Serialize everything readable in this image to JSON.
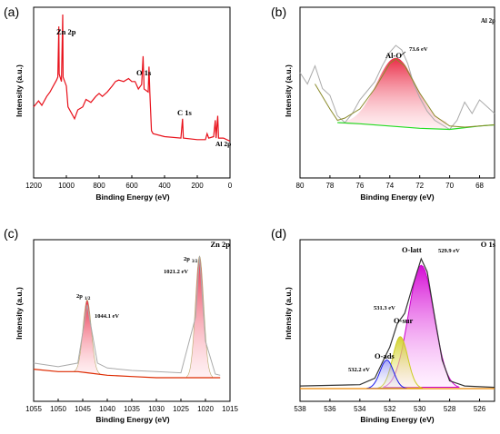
{
  "panels": [
    {
      "label": "(a)",
      "xlabel": "Binding Energy (eV)",
      "ylabel": "Intensity (a.u.)",
      "corner": ""
    },
    {
      "label": "(b)",
      "xlabel": "Binding Energy (eV)",
      "ylabel": "Intensity (a.u.)",
      "corner": "Al 2p"
    },
    {
      "label": "(c)",
      "xlabel": "Binding Energy (eV)",
      "ylabel": "Intensity (a.u.)",
      "corner": "Zn 2p"
    },
    {
      "label": "(d)",
      "xlabel": "Binding Energy (eV)",
      "ylabel": "Intensity (a.u.)",
      "corner": "O 1s"
    }
  ],
  "chart_data": [
    {
      "type": "line",
      "title": "",
      "xlabel": "Binding Energy (eV)",
      "ylabel": "Intensity (a.u.)",
      "xlim": [
        1200,
        0
      ],
      "xticks": [
        1200,
        1000,
        800,
        600,
        400,
        200,
        0
      ],
      "line_color": "#e8101a",
      "annotations": [
        "Zn 2p",
        "O 1s",
        "C 1s",
        "Al 2p"
      ],
      "series": [
        {
          "values": [
            [
              1200,
              0.38
            ],
            [
              1170,
              0.42
            ],
            [
              1150,
              0.39
            ],
            [
              1120,
              0.45
            ],
            [
              1100,
              0.48
            ],
            [
              1080,
              0.52
            ],
            [
              1060,
              0.56
            ],
            [
              1052,
              0.58
            ],
            [
              1046,
              0.92
            ],
            [
              1044,
              0.6
            ],
            [
              1030,
              0.55
            ],
            [
              1022,
              1.0
            ],
            [
              1020,
              0.58
            ],
            [
              1000,
              0.52
            ],
            [
              990,
              0.38
            ],
            [
              970,
              0.34
            ],
            [
              950,
              0.3
            ],
            [
              930,
              0.36
            ],
            [
              900,
              0.38
            ],
            [
              880,
              0.43
            ],
            [
              850,
              0.41
            ],
            [
              820,
              0.45
            ],
            [
              800,
              0.47
            ],
            [
              780,
              0.45
            ],
            [
              750,
              0.48
            ],
            [
              720,
              0.52
            ],
            [
              700,
              0.55
            ],
            [
              680,
              0.56
            ],
            [
              650,
              0.55
            ],
            [
              620,
              0.57
            ],
            [
              600,
              0.55
            ],
            [
              580,
              0.55
            ],
            [
              560,
              0.5
            ],
            [
              540,
              0.53
            ],
            [
              531,
              0.72
            ],
            [
              525,
              0.5
            ],
            [
              500,
              0.48
            ],
            [
              495,
              0.65
            ],
            [
              490,
              0.48
            ],
            [
              480,
              0.22
            ],
            [
              470,
              0.2
            ],
            [
              400,
              0.18
            ],
            [
              300,
              0.17
            ],
            [
              290,
              0.3
            ],
            [
              285,
              0.17
            ],
            [
              200,
              0.16
            ],
            [
              150,
              0.16
            ],
            [
              140,
              0.2
            ],
            [
              130,
              0.17
            ],
            [
              100,
              0.18
            ],
            [
              90,
              0.29
            ],
            [
              85,
              0.17
            ],
            [
              75,
              0.32
            ],
            [
              70,
              0.17
            ],
            [
              40,
              0.17
            ],
            [
              20,
              0.16
            ],
            [
              0,
              0.15
            ]
          ]
        }
      ]
    },
    {
      "type": "line",
      "title": "",
      "xlabel": "Binding Energy (eV)",
      "ylabel": "Intensity (a.u.)",
      "xlim": [
        80,
        67
      ],
      "xticks": [
        80,
        78,
        76,
        74,
        72,
        70,
        68
      ],
      "annotations": [
        "Al-O",
        "73.6 eV"
      ],
      "peak_center": 73.6,
      "series": [
        {
          "role": "raw",
          "color": "#aaaaaa",
          "values": [
            [
              80,
              0.72
            ],
            [
              79.5,
              0.62
            ],
            [
              79,
              0.78
            ],
            [
              78.5,
              0.58
            ],
            [
              78,
              0.52
            ],
            [
              77.5,
              0.34
            ],
            [
              77,
              0.28
            ],
            [
              76.5,
              0.36
            ],
            [
              76,
              0.48
            ],
            [
              75.5,
              0.56
            ],
            [
              75,
              0.64
            ],
            [
              74.5,
              0.78
            ],
            [
              74,
              0.9
            ],
            [
              73.6,
              0.96
            ],
            [
              73.2,
              0.92
            ],
            [
              72.8,
              0.8
            ],
            [
              72.4,
              0.62
            ],
            [
              72,
              0.5
            ],
            [
              71.5,
              0.38
            ],
            [
              71,
              0.3
            ],
            [
              70.5,
              0.26
            ],
            [
              70,
              0.22
            ],
            [
              69.5,
              0.3
            ],
            [
              69,
              0.46
            ],
            [
              68.5,
              0.36
            ],
            [
              68,
              0.48
            ],
            [
              67.5,
              0.42
            ],
            [
              67,
              0.36
            ]
          ]
        },
        {
          "role": "background",
          "color": "#22dd22",
          "values": [
            [
              77.5,
              0.28
            ],
            [
              76,
              0.27
            ],
            [
              74,
              0.25
            ],
            [
              72,
              0.23
            ],
            [
              70,
              0.22
            ],
            [
              68,
              0.25
            ],
            [
              67,
              0.26
            ]
          ]
        },
        {
          "role": "envelope",
          "color": "#8a8a2a",
          "values": [
            [
              79,
              0.62
            ],
            [
              78,
              0.4
            ],
            [
              77.5,
              0.3
            ],
            [
              77,
              0.32
            ],
            [
              76,
              0.4
            ],
            [
              75,
              0.58
            ],
            [
              74,
              0.8
            ],
            [
              73.6,
              0.84
            ],
            [
              73,
              0.78
            ],
            [
              72,
              0.54
            ],
            [
              71,
              0.34
            ],
            [
              70,
              0.25
            ],
            [
              69,
              0.24
            ],
            [
              68,
              0.25
            ],
            [
              67,
              0.26
            ]
          ]
        }
      ]
    },
    {
      "type": "line",
      "title": "",
      "xlabel": "Binding Energy (eV)",
      "ylabel": "Intensity (a.u.)",
      "xlim": [
        1055,
        1015
      ],
      "xticks": [
        1055,
        1050,
        1045,
        1040,
        1035,
        1030,
        1025,
        1020,
        1015
      ],
      "annotations": [
        "2p1/2",
        "1044.1 eV",
        "2p3/2",
        "1021.2 eV"
      ],
      "peaks": [
        {
          "center": 1044.1,
          "height": 0.6
        },
        {
          "center": 1021.2,
          "height": 1.0
        }
      ],
      "series": [
        {
          "role": "raw",
          "color": "#aaaaaa",
          "values": [
            [
              1055,
              0.12
            ],
            [
              1050,
              0.09
            ],
            [
              1046,
              0.12
            ],
            [
              1044.1,
              0.6
            ],
            [
              1042,
              0.12
            ],
            [
              1040,
              0.08
            ],
            [
              1035,
              0.06
            ],
            [
              1030,
              0.05
            ],
            [
              1025,
              0.04
            ],
            [
              1022,
              0.5
            ],
            [
              1021.2,
              1.0
            ],
            [
              1020,
              0.3
            ],
            [
              1018,
              0.03
            ],
            [
              1017,
              0.02
            ]
          ]
        },
        {
          "role": "background",
          "color": "#dd2a00",
          "values": [
            [
              1055,
              0.07
            ],
            [
              1050,
              0.05
            ],
            [
              1046,
              0.05
            ],
            [
              1044,
              0.04
            ],
            [
              1040,
              0.02
            ],
            [
              1035,
              0.01
            ],
            [
              1030,
              0.0
            ],
            [
              1025,
              0.0
            ],
            [
              1020,
              0.0
            ],
            [
              1017,
              0.0
            ]
          ]
        }
      ]
    },
    {
      "type": "line",
      "title": "",
      "xlabel": "Binding Energy (eV)",
      "ylabel": "Intensity (a.u.)",
      "xlim": [
        538,
        525
      ],
      "xticks": [
        538,
        536,
        534,
        532,
        530,
        528,
        526
      ],
      "annotations": [
        "O-latt",
        "529.9 eV",
        "531.3 eV",
        "O-sur",
        "O-ads",
        "532.2 eV"
      ],
      "peaks": [
        {
          "name": "O-latt",
          "center": 529.9,
          "height": 0.95,
          "color": "#cc00cc"
        },
        {
          "name": "O-sur",
          "center": 531.3,
          "height": 0.4,
          "color": "#cccc22"
        },
        {
          "name": "O-ads",
          "center": 532.2,
          "height": 0.22,
          "color": "#1a1aee"
        }
      ],
      "series": [
        {
          "role": "envelope",
          "color": "#333333",
          "values": [
            [
              538,
              0.02
            ],
            [
              534,
              0.03
            ],
            [
              533,
              0.08
            ],
            [
              532.5,
              0.2
            ],
            [
              532,
              0.32
            ],
            [
              531.5,
              0.5
            ],
            [
              531,
              0.58
            ],
            [
              530.5,
              0.78
            ],
            [
              529.9,
              1.0
            ],
            [
              529.5,
              0.9
            ],
            [
              529,
              0.55
            ],
            [
              528.5,
              0.22
            ],
            [
              528,
              0.06
            ],
            [
              527,
              0.02
            ],
            [
              525,
              0.01
            ]
          ]
        },
        {
          "role": "background",
          "color": "#ee8800",
          "values": [
            [
              538,
              0.0
            ],
            [
              530,
              0.0
            ],
            [
              525,
              0.0
            ]
          ]
        }
      ]
    }
  ]
}
